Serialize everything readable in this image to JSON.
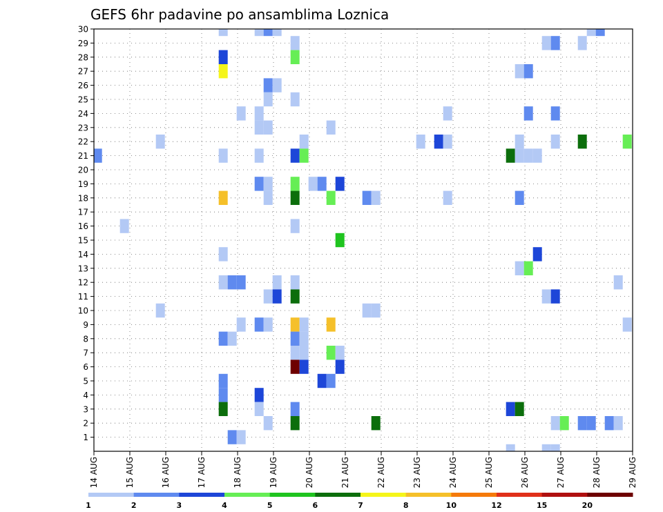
{
  "chart_data": {
    "type": "heatmap",
    "title": "GEFS 6hr padavine po ansamblima Loznica",
    "xlabel": "",
    "ylabel": "",
    "x_tick_labels": [
      "14 AUG",
      "15 AUG",
      "16 AUG",
      "17 AUG",
      "18 AUG",
      "19 AUG",
      "20 AUG",
      "21 AUG",
      "22 AUG",
      "23 AUG",
      "24 AUG",
      "25 AUG",
      "26 AUG",
      "27 AUG",
      "28 AUG",
      "29 AUG"
    ],
    "y_tick_labels": [
      "1",
      "2",
      "3",
      "4",
      "5",
      "6",
      "7",
      "8",
      "9",
      "10",
      "11",
      "12",
      "13",
      "14",
      "15",
      "16",
      "17",
      "18",
      "19",
      "20",
      "21",
      "22",
      "23",
      "24",
      "25",
      "26",
      "27",
      "28",
      "29",
      "30"
    ],
    "x_range_days": [
      0,
      15
    ],
    "y_range_members": [
      0,
      30
    ],
    "time_step_hours": 6,
    "grid": true,
    "legend_placement": "bottom",
    "colorbar": {
      "labels": [
        "1",
        "2",
        "3",
        "4",
        "5",
        "6",
        "7",
        "8",
        "10",
        "12",
        "15",
        "20"
      ],
      "colors": [
        "#b3c9f5",
        "#5f8aef",
        "#1d46d8",
        "#66ee55",
        "#1fc41f",
        "#0c6e0c",
        "#f5f51a",
        "#f5c02a",
        "#f57a0a",
        "#e0301a",
        "#b01010",
        "#6e0000"
      ]
    },
    "cells": [
      {
        "day": 3.6,
        "member": 30,
        "value": 1
      },
      {
        "day": 4.6,
        "member": 30,
        "value": 1
      },
      {
        "day": 4.85,
        "member": 30,
        "value": 2
      },
      {
        "day": 5.1,
        "member": 30,
        "value": 1
      },
      {
        "day": 13.85,
        "member": 30,
        "value": 1
      },
      {
        "day": 14.1,
        "member": 30,
        "value": 2
      },
      {
        "day": 5.6,
        "member": 29,
        "value": 1
      },
      {
        "day": 12.6,
        "member": 29,
        "value": 1
      },
      {
        "day": 12.85,
        "member": 29,
        "value": 2
      },
      {
        "day": 13.6,
        "member": 29,
        "value": 1
      },
      {
        "day": 3.6,
        "member": 28,
        "value": 3
      },
      {
        "day": 5.6,
        "member": 28,
        "value": 4
      },
      {
        "day": 3.6,
        "member": 27,
        "value": 7
      },
      {
        "day": 11.85,
        "member": 27,
        "value": 1
      },
      {
        "day": 12.1,
        "member": 27,
        "value": 2
      },
      {
        "day": 4.85,
        "member": 26,
        "value": 2
      },
      {
        "day": 5.1,
        "member": 26,
        "value": 1
      },
      {
        "day": 4.85,
        "member": 25,
        "value": 1
      },
      {
        "day": 5.6,
        "member": 25,
        "value": 1
      },
      {
        "day": 4.1,
        "member": 24,
        "value": 1
      },
      {
        "day": 4.6,
        "member": 24,
        "value": 1
      },
      {
        "day": 9.85,
        "member": 24,
        "value": 1
      },
      {
        "day": 12.1,
        "member": 24,
        "value": 2
      },
      {
        "day": 12.85,
        "member": 24,
        "value": 2
      },
      {
        "day": 4.6,
        "member": 23,
        "value": 1
      },
      {
        "day": 4.85,
        "member": 23,
        "value": 1
      },
      {
        "day": 6.6,
        "member": 23,
        "value": 1
      },
      {
        "day": 1.85,
        "member": 22,
        "value": 1
      },
      {
        "day": 5.85,
        "member": 22,
        "value": 1
      },
      {
        "day": 9.1,
        "member": 22,
        "value": 1
      },
      {
        "day": 9.6,
        "member": 22,
        "value": 3
      },
      {
        "day": 9.85,
        "member": 22,
        "value": 1
      },
      {
        "day": 11.85,
        "member": 22,
        "value": 1
      },
      {
        "day": 12.85,
        "member": 22,
        "value": 1
      },
      {
        "day": 13.6,
        "member": 22,
        "value": 6
      },
      {
        "day": 14.85,
        "member": 22,
        "value": 4
      },
      {
        "day": 0.1,
        "member": 21,
        "value": 2
      },
      {
        "day": 3.6,
        "member": 21,
        "value": 1
      },
      {
        "day": 4.6,
        "member": 21,
        "value": 1
      },
      {
        "day": 5.6,
        "member": 21,
        "value": 3
      },
      {
        "day": 5.85,
        "member": 21,
        "value": 4
      },
      {
        "day": 11.6,
        "member": 21,
        "value": 6
      },
      {
        "day": 11.85,
        "member": 21,
        "value": 1
      },
      {
        "day": 12.1,
        "member": 21,
        "value": 1
      },
      {
        "day": 12.35,
        "member": 21,
        "value": 1
      },
      {
        "day": 4.6,
        "member": 19,
        "value": 2
      },
      {
        "day": 4.85,
        "member": 19,
        "value": 1
      },
      {
        "day": 5.6,
        "member": 19,
        "value": 4
      },
      {
        "day": 6.1,
        "member": 19,
        "value": 1
      },
      {
        "day": 6.35,
        "member": 19,
        "value": 2
      },
      {
        "day": 6.85,
        "member": 19,
        "value": 3
      },
      {
        "day": 3.6,
        "member": 18,
        "value": 9
      },
      {
        "day": 4.85,
        "member": 18,
        "value": 1
      },
      {
        "day": 5.6,
        "member": 18,
        "value": 6
      },
      {
        "day": 6.6,
        "member": 18,
        "value": 4
      },
      {
        "day": 7.6,
        "member": 18,
        "value": 2
      },
      {
        "day": 7.85,
        "member": 18,
        "value": 1
      },
      {
        "day": 9.85,
        "member": 18,
        "value": 1
      },
      {
        "day": 11.85,
        "member": 18,
        "value": 2
      },
      {
        "day": 0.85,
        "member": 16,
        "value": 1
      },
      {
        "day": 5.6,
        "member": 16,
        "value": 1
      },
      {
        "day": 6.85,
        "member": 15,
        "value": 5
      },
      {
        "day": 3.6,
        "member": 14,
        "value": 1
      },
      {
        "day": 12.35,
        "member": 14,
        "value": 3
      },
      {
        "day": 11.85,
        "member": 13,
        "value": 1
      },
      {
        "day": 12.1,
        "member": 13,
        "value": 4
      },
      {
        "day": 3.6,
        "member": 12,
        "value": 1
      },
      {
        "day": 3.85,
        "member": 12,
        "value": 2
      },
      {
        "day": 4.1,
        "member": 12,
        "value": 2
      },
      {
        "day": 5.1,
        "member": 12,
        "value": 1
      },
      {
        "day": 5.6,
        "member": 12,
        "value": 1
      },
      {
        "day": 14.6,
        "member": 12,
        "value": 1
      },
      {
        "day": 4.85,
        "member": 11,
        "value": 1
      },
      {
        "day": 5.1,
        "member": 11,
        "value": 3
      },
      {
        "day": 5.6,
        "member": 11,
        "value": 6
      },
      {
        "day": 12.6,
        "member": 11,
        "value": 1
      },
      {
        "day": 12.85,
        "member": 11,
        "value": 3
      },
      {
        "day": 1.85,
        "member": 10,
        "value": 1
      },
      {
        "day": 7.6,
        "member": 10,
        "value": 1
      },
      {
        "day": 7.85,
        "member": 10,
        "value": 1
      },
      {
        "day": 4.1,
        "member": 9,
        "value": 1
      },
      {
        "day": 4.6,
        "member": 9,
        "value": 2
      },
      {
        "day": 4.85,
        "member": 9,
        "value": 1
      },
      {
        "day": 5.6,
        "member": 9,
        "value": 8
      },
      {
        "day": 5.85,
        "member": 9,
        "value": 1
      },
      {
        "day": 6.6,
        "member": 9,
        "value": 8
      },
      {
        "day": 14.85,
        "member": 9,
        "value": 1
      },
      {
        "day": 3.6,
        "member": 8,
        "value": 2
      },
      {
        "day": 3.85,
        "member": 8,
        "value": 1
      },
      {
        "day": 5.6,
        "member": 8,
        "value": 2
      },
      {
        "day": 5.85,
        "member": 8,
        "value": 1
      },
      {
        "day": 5.6,
        "member": 7,
        "value": 1
      },
      {
        "day": 5.85,
        "member": 7,
        "value": 1
      },
      {
        "day": 6.6,
        "member": 7,
        "value": 4
      },
      {
        "day": 6.85,
        "member": 7,
        "value": 1
      },
      {
        "day": 5.6,
        "member": 6,
        "value": 20
      },
      {
        "day": 5.85,
        "member": 6,
        "value": 3
      },
      {
        "day": 6.85,
        "member": 6,
        "value": 3
      },
      {
        "day": 3.6,
        "member": 5,
        "value": 2
      },
      {
        "day": 6.35,
        "member": 5,
        "value": 3
      },
      {
        "day": 6.6,
        "member": 5,
        "value": 2
      },
      {
        "day": 3.6,
        "member": 4,
        "value": 2
      },
      {
        "day": 4.6,
        "member": 4,
        "value": 3
      },
      {
        "day": 3.6,
        "member": 3,
        "value": 6
      },
      {
        "day": 4.6,
        "member": 3,
        "value": 1
      },
      {
        "day": 5.6,
        "member": 3,
        "value": 2
      },
      {
        "day": 11.6,
        "member": 3,
        "value": 3
      },
      {
        "day": 11.85,
        "member": 3,
        "value": 6
      },
      {
        "day": 4.85,
        "member": 2,
        "value": 1
      },
      {
        "day": 5.6,
        "member": 2,
        "value": 6
      },
      {
        "day": 7.85,
        "member": 2,
        "value": 6
      },
      {
        "day": 12.85,
        "member": 2,
        "value": 1
      },
      {
        "day": 13.1,
        "member": 2,
        "value": 4
      },
      {
        "day": 13.6,
        "member": 2,
        "value": 2
      },
      {
        "day": 13.85,
        "member": 2,
        "value": 2
      },
      {
        "day": 14.35,
        "member": 2,
        "value": 2
      },
      {
        "day": 14.6,
        "member": 2,
        "value": 1
      },
      {
        "day": 3.85,
        "member": 1,
        "value": 2
      },
      {
        "day": 4.1,
        "member": 1,
        "value": 1
      },
      {
        "day": 11.6,
        "member": 0,
        "value": 1
      },
      {
        "day": 12.6,
        "member": 0,
        "value": 1
      },
      {
        "day": 12.85,
        "member": 0,
        "value": 1
      }
    ]
  }
}
